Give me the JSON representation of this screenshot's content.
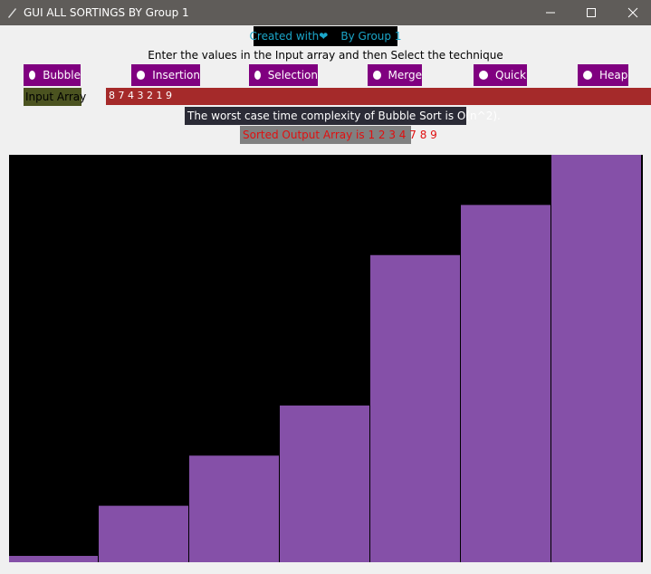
{
  "window": {
    "title": "GUI ALL SORTINGS BY Group 1"
  },
  "header": {
    "credit": "Created with❤",
    "author": "By Group 1"
  },
  "instruction": "Enter the values in the Input array and then Select the technique",
  "techniques": [
    "Bubble",
    "Insertion",
    "Selection",
    "Merge",
    "Quick",
    "Heap"
  ],
  "input": {
    "label": "Input Array",
    "value": "8 7 4 3 2 1 9"
  },
  "complexity": "The worst case time complexity of Bubble Sort  is  O(n^2).",
  "output": "Sorted Output Array is 1 2 3 4 7 8 9",
  "bars": {
    "values": [
      1,
      2,
      3,
      4,
      7,
      8,
      9
    ],
    "color": "#8550a8"
  }
}
